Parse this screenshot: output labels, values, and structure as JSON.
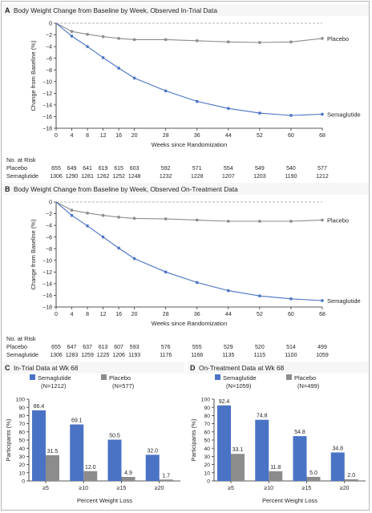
{
  "colors": {
    "semaglutide": "#4a73c5",
    "placebo": "#8c8c8c",
    "panel_bg": "#f6f6f6",
    "axis": "#231f20"
  },
  "chart_data": [
    {
      "panel": "A",
      "type": "line",
      "title": "Body Weight Change from Baseline by Week, Observed In-Trial Data",
      "xlabel": "Weeks since Randomization",
      "ylabel": "Change from Baseline (%)",
      "xlim": [
        0,
        68
      ],
      "ylim": [
        -18,
        0
      ],
      "xticks": [
        0,
        4,
        8,
        12,
        16,
        20,
        28,
        36,
        44,
        52,
        60,
        68
      ],
      "yticks": [
        0,
        -2,
        -4,
        -6,
        -8,
        -10,
        -12,
        -14,
        -16,
        -18
      ],
      "x": [
        0,
        4,
        8,
        12,
        16,
        20,
        28,
        36,
        44,
        52,
        60,
        68
      ],
      "series": [
        {
          "name": "Placebo",
          "values": [
            0,
            -1.4,
            -1.9,
            -2.3,
            -2.6,
            -2.8,
            -2.8,
            -3.0,
            -3.2,
            -3.3,
            -3.2,
            -2.6
          ]
        },
        {
          "name": "Semaglutide",
          "values": [
            0,
            -2.2,
            -4.0,
            -5.9,
            -7.7,
            -9.4,
            -11.6,
            -13.4,
            -14.6,
            -15.4,
            -15.8,
            -15.6
          ]
        }
      ],
      "at_risk": {
        "label": "No. at Risk",
        "rows": [
          {
            "name": "Placebo",
            "values": [
              "655",
              "649",
              "641",
              "619",
              "615",
              "603",
              "592",
              "571",
              "554",
              "549",
              "540",
              "577"
            ]
          },
          {
            "name": "Semaglutide",
            "values": [
              "1306",
              "1290",
              "1281",
              "1262",
              "1252",
              "1248",
              "1232",
              "1228",
              "1207",
              "1203",
              "1190",
              "1212"
            ]
          }
        ]
      }
    },
    {
      "panel": "B",
      "type": "line",
      "title": "Body Weight Change from Baseline by Week, Observed On-Treatment Data",
      "xlabel": "Weeks since Randomization",
      "ylabel": "Change from Baseline (%)",
      "xlim": [
        0,
        68
      ],
      "ylim": [
        -18,
        0
      ],
      "xticks": [
        0,
        4,
        8,
        12,
        16,
        20,
        28,
        36,
        44,
        52,
        60,
        68
      ],
      "yticks": [
        0,
        -2,
        -4,
        -6,
        -8,
        -10,
        -12,
        -14,
        -16,
        -18
      ],
      "x": [
        0,
        4,
        8,
        12,
        16,
        20,
        28,
        36,
        44,
        52,
        60,
        68
      ],
      "series": [
        {
          "name": "Placebo",
          "values": [
            0,
            -1.4,
            -1.9,
            -2.3,
            -2.6,
            -2.8,
            -2.9,
            -3.1,
            -3.3,
            -3.3,
            -3.3,
            -3.1
          ]
        },
        {
          "name": "Semaglutide",
          "values": [
            0,
            -2.3,
            -4.1,
            -6.0,
            -7.9,
            -9.7,
            -12.0,
            -13.8,
            -15.2,
            -16.1,
            -16.6,
            -16.9
          ]
        }
      ],
      "at_risk": {
        "label": "No. at Risk",
        "rows": [
          {
            "name": "Placebo",
            "values": [
              "655",
              "647",
              "637",
              "613",
              "607",
              "593",
              "576",
              "555",
              "529",
              "520",
              "514",
              "499"
            ]
          },
          {
            "name": "Semaglutide",
            "values": [
              "1306",
              "1283",
              "1259",
              "1225",
              "1206",
              "1193",
              "1176",
              "1166",
              "1135",
              "1115",
              "1100",
              "1059"
            ]
          }
        ]
      }
    },
    {
      "panel": "C",
      "type": "bar",
      "title": "In-Trial Data at Wk 68",
      "xlabel": "Percent Weight Loss",
      "ylabel": "Participants (%)",
      "ylim": [
        0,
        100
      ],
      "yticks": [
        0,
        10,
        20,
        30,
        40,
        50,
        60,
        70,
        80,
        90,
        100
      ],
      "categories": [
        "≥5",
        "≥10",
        "≥15",
        "≥20"
      ],
      "series": [
        {
          "name": "Semaglutide",
          "legend_sub": "(N=1212)",
          "values": [
            86.4,
            69.1,
            50.5,
            32.0
          ],
          "labels": [
            "86.4",
            "69.1",
            "50.5",
            "32.0"
          ]
        },
        {
          "name": "Placebo",
          "legend_sub": "(N=577)",
          "values": [
            31.5,
            12.0,
            4.9,
            1.7
          ],
          "labels": [
            "31.5",
            "12.0",
            "4.9",
            "1.7"
          ]
        }
      ]
    },
    {
      "panel": "D",
      "type": "bar",
      "title": "On-Treatment Data at Wk 68",
      "xlabel": "Percent Weight Loss",
      "ylabel": "Participants (%)",
      "ylim": [
        0,
        100
      ],
      "yticks": [
        0,
        10,
        20,
        30,
        40,
        50,
        60,
        70,
        80,
        90,
        100
      ],
      "categories": [
        "≥5",
        "≥10",
        "≥15",
        "≥20"
      ],
      "series": [
        {
          "name": "Semaglutide",
          "legend_sub": "(N=1059)",
          "values": [
            92.4,
            74.8,
            54.8,
            34.8
          ],
          "labels": [
            "92.4",
            "74.8",
            "54.8",
            "34.8"
          ]
        },
        {
          "name": "Placebo",
          "legend_sub": "(N=499)",
          "values": [
            33.1,
            11.8,
            5.0,
            2.0
          ],
          "labels": [
            "33.1",
            "11.8",
            "5.0",
            "2.0"
          ]
        }
      ]
    }
  ]
}
